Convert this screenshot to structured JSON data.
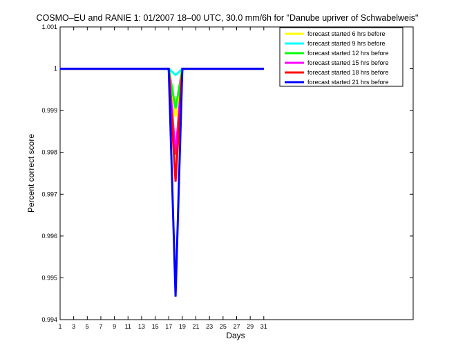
{
  "chart_data": {
    "type": "line",
    "title": "COSMO–EU and RANIE 1: 01/2007 18–00 UTC, 30.0 mm/6h for \"Danube upriver of Schwabelweis\"",
    "xlabel": "Days",
    "ylabel": "Percent correct score",
    "xlim": [
      1,
      53
    ],
    "ylim": [
      0.994,
      1.001
    ],
    "x_ticks": [
      1,
      3,
      5,
      7,
      9,
      11,
      13,
      15,
      17,
      19,
      21,
      23,
      25,
      27,
      29,
      31
    ],
    "y_ticks": [
      "0.994",
      "0.995",
      "0.996",
      "0.997",
      "0.998",
      "0.999",
      "1",
      "1.001"
    ],
    "y_tick_values": [
      0.994,
      0.995,
      0.996,
      0.997,
      0.998,
      0.999,
      1.0,
      1.001
    ],
    "grid": false,
    "legend_position": "top-right",
    "x": [
      1,
      17,
      18,
      19,
      31
    ],
    "series": [
      {
        "name": "forecast started 6 hrs before",
        "color": "#ffff00",
        "values": [
          1,
          1,
          0.99885,
          1,
          1
        ]
      },
      {
        "name": "forecast started 9 hrs before",
        "color": "#00ffff",
        "values": [
          1,
          1,
          0.99985,
          1,
          1
        ]
      },
      {
        "name": "forecast started 12 hrs before",
        "color": "#00ff00",
        "values": [
          1,
          1,
          0.99905,
          1,
          1
        ]
      },
      {
        "name": "forecast started 15 hrs before",
        "color": "#ff00ff",
        "values": [
          1,
          1,
          0.99795,
          1,
          1
        ]
      },
      {
        "name": "forecast started 18 hrs before",
        "color": "#ff0000",
        "values": [
          1,
          1,
          0.9973,
          1,
          1
        ]
      },
      {
        "name": "forecast started 21 hrs before",
        "color": "#0000ff",
        "values": [
          1,
          1,
          0.99455,
          1,
          1
        ]
      }
    ]
  }
}
